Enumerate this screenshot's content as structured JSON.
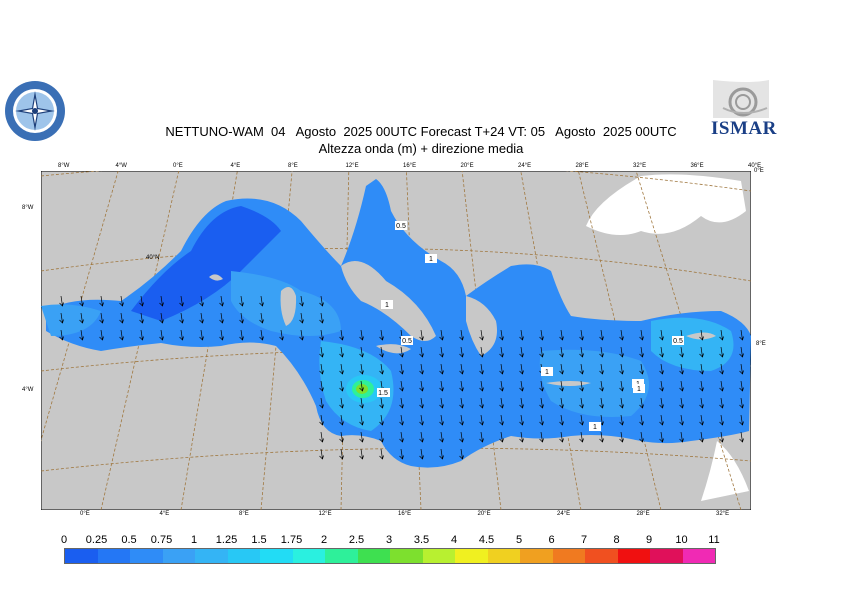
{
  "title": {
    "line1": "NETTUNO-WAM  04   Agosto  2025 00UTC Forecast T+24 VT: 05   Agosto  2025 00UTC",
    "line2": "Altezza onda (m) + direzione media"
  },
  "logos": {
    "left_icon": "compass-rose-seal",
    "right_icon": "ismar-logo",
    "right_text": "ISMAR"
  },
  "colorbar": {
    "labels": [
      "0",
      "0.25",
      "0.5",
      "0.75",
      "1",
      "1.25",
      "1.5",
      "1.75",
      "2",
      "2.5",
      "3",
      "3.5",
      "4",
      "4.5",
      "5",
      "6",
      "7",
      "8",
      "9",
      "10",
      "11"
    ],
    "colors": [
      "#1a5ef0",
      "#2477f5",
      "#2f8cf7",
      "#3aa1f5",
      "#34b4f5",
      "#28c8f5",
      "#22dcf5",
      "#2af0e0",
      "#2ef09a",
      "#3ee050",
      "#7de02e",
      "#b8f030",
      "#f0f020",
      "#f0d020",
      "#f0a020",
      "#f07a20",
      "#f05020",
      "#f01010",
      "#e0105a",
      "#f02ab4"
    ]
  },
  "map": {
    "top_longitudes": [
      "8°W",
      "4°W",
      "0°E",
      "4°E",
      "8°E",
      "12°E",
      "16°E",
      "20°E",
      "24°E",
      "28°E",
      "32°E",
      "36°E",
      "40°E"
    ],
    "bottom_longitudes": [
      "0°E",
      "4°E",
      "8°E",
      "12°E",
      "16°E",
      "20°E",
      "24°E",
      "28°E",
      "32°E"
    ],
    "left_latitudes": [
      "8°W",
      "40°N",
      "4°W"
    ],
    "right_latitudes": [
      "0°E",
      "8°E"
    ],
    "contour_labels": [
      "0.5",
      "1",
      "1",
      "0.5",
      "1.5",
      "1.5",
      "1",
      "1",
      "1",
      "0.5",
      "1"
    ],
    "colors": {
      "land": "#c8c8c8",
      "sea_low": "#1a5ef0",
      "sea_mid": "#3aa1f5",
      "sea_high": "#40d040",
      "graticule": "#a07840"
    }
  }
}
